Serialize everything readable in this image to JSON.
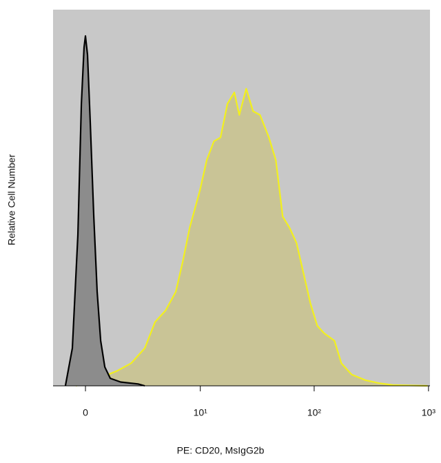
{
  "chart_data": {
    "type": "area",
    "x_label": "PE: CD20, MsIgG2b",
    "y_label": "Relative Cell Number",
    "xscale": "asinh",
    "xlim": [
      -1.4,
      1030
    ],
    "ylim": [
      0,
      100
    ],
    "xticks": [
      0,
      {
        "value": 10,
        "label": "10¹"
      },
      {
        "value": 100,
        "label": "10²"
      },
      {
        "value": 1000,
        "label": "10³"
      }
    ],
    "background": "#c8c8c8",
    "series": [
      {
        "name": "CD20",
        "color": "#f2f01e",
        "fill": "#c9c496",
        "x": [
          -0.39,
          0.167,
          0.74,
          1.37,
          2.11,
          3.0,
          3.82,
          4.81,
          6.0,
          6.95,
          8.02,
          9.93,
          11.4,
          13.2,
          15.1,
          17.4,
          20.0,
          22.1,
          25.4,
          29.2,
          33.6,
          40.2,
          46.2,
          53.1,
          61.0,
          70.1,
          80.6,
          92.6,
          106.4,
          122.2,
          150.5,
          172.9,
          213,
          281,
          371,
          490,
          982
        ],
        "values": [
          0,
          1,
          2.5,
          4,
          6,
          10,
          17,
          20,
          25,
          33,
          42,
          52,
          60,
          65,
          66,
          75,
          78,
          72,
          79,
          73,
          72,
          66,
          60,
          45,
          42,
          38,
          30,
          22,
          16,
          14,
          12,
          6,
          3,
          1.5,
          0.7,
          0.2,
          0
        ]
      },
      {
        "name": "MsIgG2b",
        "color": "#000000",
        "fill": "#8c8c8c",
        "x": [
          -0.83,
          -0.534,
          -0.307,
          -0.166,
          -0.056,
          0,
          0.083,
          0.194,
          0.335,
          0.476,
          0.622,
          0.798,
          1.04,
          1.54,
          2.54,
          3.0
        ],
        "values": [
          0,
          10,
          40,
          75,
          90,
          93,
          88,
          70,
          45,
          25,
          12,
          5,
          2,
          1,
          0.5,
          0
        ]
      }
    ]
  }
}
